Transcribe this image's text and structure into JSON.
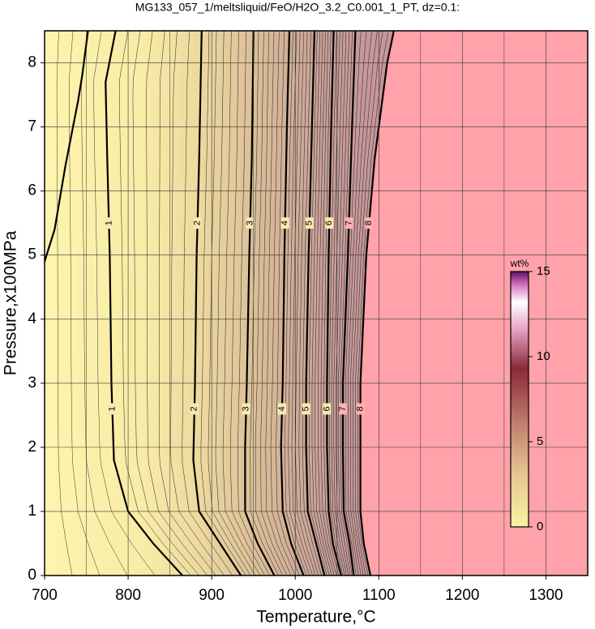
{
  "chart_data": {
    "type": "contour",
    "title": "MG133_057_1/meltsliquid/FeO/H2O_3.2_C0.001_1_PT, dz=0.1:",
    "x_label": "Temperature,°C",
    "y_label": "Pressure,x100MPa",
    "xlim": [
      700,
      1350
    ],
    "ylim": [
      0,
      8.5
    ],
    "xticks": [
      700,
      800,
      900,
      1000,
      1100,
      1200,
      1300
    ],
    "yticks": [
      0,
      1,
      2,
      3,
      4,
      5,
      6,
      7,
      8
    ],
    "xgrid": [
      750,
      850,
      950,
      1050,
      1150,
      1250
    ],
    "grid": true,
    "contours": [
      {
        "level": 1,
        "x": [
          865,
          830,
          800,
          783,
          780,
          778,
          775,
          773,
          785,
          null,
          700,
          712,
          725,
          740,
          745,
          752
        ],
        "y": [
          0,
          0.5,
          1,
          1.8,
          3,
          5,
          6.5,
          7.7,
          8.5,
          null,
          4.9,
          5.4,
          6.4,
          7.4,
          7.8,
          8.5
        ]
      },
      {
        "level": 2,
        "x": [
          935,
          910,
          885,
          878,
          880,
          882,
          885,
          888
        ],
        "y": [
          0,
          0.5,
          1,
          1.8,
          3,
          5,
          6.5,
          8.5
        ]
      },
      {
        "level": 3,
        "x": [
          975,
          955,
          940,
          940,
          942,
          945,
          948,
          950
        ],
        "y": [
          0,
          0.5,
          1,
          2,
          3,
          5,
          6.5,
          8.5
        ]
      },
      {
        "level": 4,
        "x": [
          1010,
          995,
          985,
          983,
          985,
          987,
          990,
          993
        ],
        "y": [
          0,
          0.5,
          1,
          2,
          3,
          5,
          7,
          8.5
        ]
      },
      {
        "level": 5,
        "x": [
          1035,
          1025,
          1015,
          1013,
          1013,
          1016,
          1020,
          1023
        ],
        "y": [
          0,
          0.5,
          1,
          2,
          3,
          5,
          7,
          8.5
        ]
      },
      {
        "level": 6,
        "x": [
          1055,
          1045,
          1040,
          1038,
          1038,
          1040,
          1043,
          1046
        ],
        "y": [
          0,
          0.5,
          1,
          2,
          3,
          5,
          7,
          8.5
        ]
      },
      {
        "level": 7,
        "x": [
          1070,
          1065,
          1058,
          1057,
          1057,
          1063,
          1068,
          1072
        ],
        "y": [
          0,
          0.5,
          1,
          2,
          3,
          5,
          7,
          8.5
        ]
      },
      {
        "level": 8,
        "x": [
          1090,
          1082,
          1078,
          1078,
          1078,
          1085,
          1095,
          1110,
          1118
        ],
        "y": [
          0,
          0.5,
          1,
          2,
          3,
          5,
          6.5,
          8,
          8.5
        ]
      }
    ],
    "colorbar": {
      "label": "wt%",
      "lim": [
        0,
        15
      ],
      "ticks": [
        0,
        5,
        10,
        15
      ]
    }
  }
}
